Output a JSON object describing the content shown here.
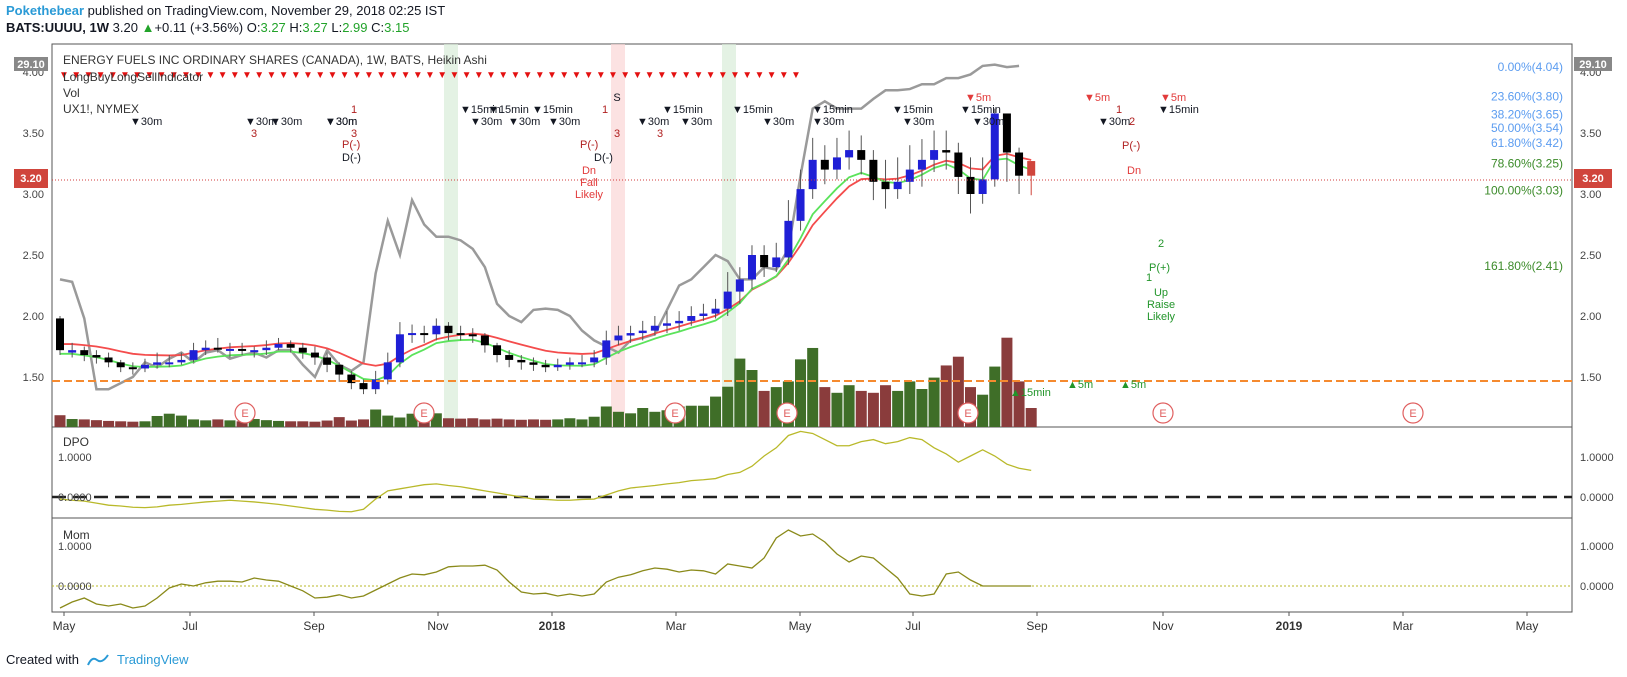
{
  "header": {
    "author": "Pokethebear",
    "published": " published on TradingView.com, November 29, 2018 02:25 IST",
    "symbol": "BATS:UUUU, 1W",
    "price": "3.20",
    "change": "+0.11 (+3.56%)",
    "o_label": "O:",
    "o": "3.27",
    "h_label": "H:",
    "h": "3.27",
    "l_label": "L:",
    "l": "2.99",
    "c_label": "C:",
    "c": "3.15"
  },
  "legend": {
    "title": "ENERGY FUELS INC ORDINARY SHARES (CANADA), 1W, BATS, Heikin Ashi",
    "ind1": "LongBuyLongSellIndicator",
    "ind2": "Vol",
    "ind3": "UX1!, NYMEX"
  },
  "fib_levels": [
    {
      "label": "0.00%(4.04)",
      "price": 4.04,
      "color": "#5b9cf0"
    },
    {
      "label": "23.60%(3.80)",
      "price": 3.8,
      "color": "#5b9cf0"
    },
    {
      "label": "38.20%(3.65)",
      "price": 3.65,
      "color": "#5b9cf0"
    },
    {
      "label": "50.00%(3.54)",
      "price": 3.54,
      "color": "#5b9cf0"
    },
    {
      "label": "61.80%(3.42)",
      "price": 3.42,
      "color": "#5b9cf0"
    },
    {
      "label": "78.60%(3.25)",
      "price": 3.25,
      "color": "#3c8b2a"
    },
    {
      "label": "100.00%(3.03)",
      "price": 3.03,
      "color": "#3c8b2a"
    },
    {
      "label": "161.80%(2.41)",
      "price": 2.41,
      "color": "#3c8b2a"
    }
  ],
  "price_axis": {
    "ticks": [
      "4.00",
      "3.50",
      "3.00",
      "2.50",
      "2.00",
      "1.50"
    ],
    "last_price_label": "3.20",
    "ux_label": "29.10"
  },
  "dpo": {
    "title": "DPO",
    "ticks": [
      "1.0000",
      "0.0000"
    ]
  },
  "mom": {
    "title": "Mom",
    "ticks": [
      "1.0000",
      "0.0000"
    ]
  },
  "time_axis": [
    "May",
    "Jul",
    "Sep",
    "Nov",
    "2018",
    "Mar",
    "May",
    "Jul",
    "Sep",
    "Nov",
    "2019",
    "Mar",
    "May"
  ],
  "signal_labels": [
    {
      "text": "▼30m"
    },
    {
      "text": "▼30m"
    },
    {
      "text": "▼30m"
    },
    {
      "text": "▼30m"
    },
    {
      "text": "▼30m"
    },
    {
      "text": "▼15min"
    },
    {
      "text": "▼15min"
    },
    {
      "text": "▼15min"
    },
    {
      "text": "▼15min"
    },
    {
      "text": "▼15min"
    },
    {
      "text": "▼15min"
    },
    {
      "text": "▼15min"
    },
    {
      "text": "▼15min"
    },
    {
      "text": "▼15min"
    },
    {
      "text": "▼30m"
    },
    {
      "text": "▼30m"
    },
    {
      "text": "▼30m"
    },
    {
      "text": "▼30m"
    },
    {
      "text": "▼30m"
    },
    {
      "text": "▼30m"
    },
    {
      "text": "▼30m"
    },
    {
      "text": "▼30m"
    },
    {
      "text": "▼30m"
    },
    {
      "text": "▼30m"
    },
    {
      "text": "▼5m"
    },
    {
      "text": "▼5m"
    },
    {
      "text": "▼5m"
    }
  ],
  "annotations": {
    "p_minus_1": "P(-)",
    "d_minus_1": "D(-)",
    "p_minus_2": "P(-)",
    "d_minus_2": "D(-)",
    "dn_fall": [
      "Dn",
      "Fall",
      "Likely"
    ],
    "s_label": "S",
    "p_minus_3": "P(-)",
    "dn_3": "Dn",
    "p_plus": "P(+)",
    "up_raise": [
      "Up",
      "Raise",
      "Likely"
    ],
    "num_1": "1",
    "num_2": "2",
    "num_3": "3",
    "e_marker": "E",
    "sig_15min": "▲15min",
    "sig_5m": "▲5m"
  },
  "footer": {
    "created": "Created with",
    "brand": "TradingView"
  },
  "colors": {
    "up_candle": "#1f1fd6",
    "down_candle": "#000000",
    "up_volume": "#3f6e28",
    "down_volume": "#8a3c3c",
    "ema_red": "#f44c4c",
    "ema_green": "#5be35b",
    "ux_line": "#9a9a9a",
    "support_line": "#f58a2f",
    "osc_line": "#b9b92a"
  },
  "chart_data": {
    "type": "candlestick",
    "title": "ENERGY FUELS INC ORDINARY SHARES (CANADA), 1W, BATS, Heikin Ashi",
    "ylim": [
      1.25,
      4.05
    ],
    "candles": [
      [
        1.98,
        1.72,
        2.0,
        1.68
      ],
      [
        1.7,
        1.72,
        1.78,
        1.66
      ],
      [
        1.72,
        1.68,
        1.75,
        1.63
      ],
      [
        1.68,
        1.66,
        1.72,
        1.61
      ],
      [
        1.66,
        1.62,
        1.7,
        1.58
      ],
      [
        1.62,
        1.58,
        1.64,
        1.54
      ],
      [
        1.58,
        1.57,
        1.62,
        1.52
      ],
      [
        1.57,
        1.6,
        1.65,
        1.54
      ],
      [
        1.6,
        1.62,
        1.7,
        1.57
      ],
      [
        1.62,
        1.62,
        1.68,
        1.58
      ],
      [
        1.62,
        1.64,
        1.7,
        1.6
      ],
      [
        1.64,
        1.72,
        1.78,
        1.62
      ],
      [
        1.72,
        1.74,
        1.8,
        1.68
      ],
      [
        1.74,
        1.73,
        1.82,
        1.7
      ],
      [
        1.73,
        1.73,
        1.78,
        1.66
      ],
      [
        1.73,
        1.72,
        1.78,
        1.68
      ],
      [
        1.72,
        1.72,
        1.75,
        1.66
      ],
      [
        1.72,
        1.74,
        1.8,
        1.68
      ],
      [
        1.74,
        1.77,
        1.82,
        1.72
      ],
      [
        1.77,
        1.74,
        1.8,
        1.7
      ],
      [
        1.74,
        1.7,
        1.78,
        1.65
      ],
      [
        1.7,
        1.66,
        1.75,
        1.6
      ],
      [
        1.66,
        1.6,
        1.7,
        1.54
      ],
      [
        1.6,
        1.52,
        1.62,
        1.46
      ],
      [
        1.52,
        1.45,
        1.55,
        1.4
      ],
      [
        1.45,
        1.4,
        1.48,
        1.36
      ],
      [
        1.4,
        1.48,
        1.55,
        1.36
      ],
      [
        1.48,
        1.62,
        1.7,
        1.44
      ],
      [
        1.62,
        1.85,
        1.95,
        1.58
      ],
      [
        1.85,
        1.86,
        1.93,
        1.78
      ],
      [
        1.86,
        1.85,
        1.92,
        1.78
      ],
      [
        1.85,
        1.92,
        1.98,
        1.8
      ],
      [
        1.92,
        1.86,
        1.95,
        1.8
      ],
      [
        1.86,
        1.85,
        1.92,
        1.8
      ],
      [
        1.85,
        1.84,
        1.9,
        1.78
      ],
      [
        1.84,
        1.76,
        1.86,
        1.7
      ],
      [
        1.76,
        1.68,
        1.78,
        1.62
      ],
      [
        1.68,
        1.64,
        1.72,
        1.58
      ],
      [
        1.64,
        1.62,
        1.68,
        1.56
      ],
      [
        1.62,
        1.6,
        1.66,
        1.55
      ],
      [
        1.6,
        1.58,
        1.64,
        1.54
      ],
      [
        1.58,
        1.6,
        1.65,
        1.55
      ],
      [
        1.6,
        1.62,
        1.66,
        1.56
      ],
      [
        1.62,
        1.62,
        1.68,
        1.58
      ],
      [
        1.62,
        1.66,
        1.72,
        1.58
      ],
      [
        1.66,
        1.8,
        1.88,
        1.6
      ],
      [
        1.8,
        1.84,
        1.92,
        1.76
      ],
      [
        1.84,
        1.86,
        1.92,
        1.78
      ],
      [
        1.86,
        1.88,
        1.96,
        1.8
      ],
      [
        1.88,
        1.92,
        2.0,
        1.84
      ],
      [
        1.92,
        1.94,
        2.04,
        1.86
      ],
      [
        1.94,
        1.96,
        2.04,
        1.88
      ],
      [
        1.96,
        2.0,
        2.08,
        1.92
      ],
      [
        2.0,
        2.02,
        2.1,
        1.96
      ],
      [
        2.02,
        2.06,
        2.14,
        1.98
      ],
      [
        2.06,
        2.2,
        2.36,
        2.0
      ],
      [
        2.2,
        2.3,
        2.4,
        2.1
      ],
      [
        2.3,
        2.5,
        2.58,
        2.22
      ],
      [
        2.5,
        2.4,
        2.58,
        2.32
      ],
      [
        2.4,
        2.48,
        2.6,
        2.36
      ],
      [
        2.48,
        2.78,
        2.95,
        2.42
      ],
      [
        2.78,
        3.04,
        3.2,
        2.7
      ],
      [
        3.04,
        3.28,
        3.46,
        2.96
      ],
      [
        3.28,
        3.2,
        3.4,
        3.08
      ],
      [
        3.2,
        3.3,
        3.46,
        3.12
      ],
      [
        3.3,
        3.36,
        3.52,
        3.2
      ],
      [
        3.36,
        3.28,
        3.48,
        3.16
      ],
      [
        3.28,
        3.1,
        3.36,
        2.95
      ],
      [
        3.1,
        3.04,
        3.28,
        2.88
      ],
      [
        3.04,
        3.1,
        3.3,
        2.96
      ],
      [
        3.1,
        3.2,
        3.4,
        3.0
      ],
      [
        3.2,
        3.28,
        3.45,
        3.06
      ],
      [
        3.28,
        3.36,
        3.52,
        3.18
      ],
      [
        3.36,
        3.34,
        3.52,
        3.2
      ],
      [
        3.34,
        3.14,
        3.42,
        3.0
      ],
      [
        3.14,
        3.0,
        3.3,
        2.84
      ],
      [
        3.0,
        3.12,
        3.3,
        2.92
      ],
      [
        3.12,
        3.66,
        3.7,
        3.06
      ],
      [
        3.66,
        3.34,
        3.66,
        3.1
      ],
      [
        3.34,
        3.15,
        3.38,
        3.0
      ],
      [
        3.27,
        3.15,
        3.27,
        2.99
      ]
    ],
    "volume_relative": [
      0.62,
      0.42,
      0.4,
      0.36,
      0.32,
      0.3,
      0.28,
      0.3,
      0.58,
      0.7,
      0.6,
      0.4,
      0.35,
      0.4,
      0.35,
      0.3,
      0.42,
      0.36,
      0.32,
      0.3,
      0.3,
      0.28,
      0.34,
      0.52,
      0.34,
      0.4,
      0.92,
      0.6,
      0.5,
      0.7,
      0.72,
      0.72,
      0.46,
      0.44,
      0.46,
      0.4,
      0.44,
      0.4,
      0.38,
      0.4,
      0.38,
      0.4,
      0.46,
      0.4,
      0.54,
      1.08,
      0.8,
      0.72,
      1.0,
      0.8,
      0.88,
      1.08,
      1.12,
      1.12,
      1.6,
      2.12,
      3.6,
      3.0,
      1.9,
      2.1,
      2.4,
      3.56,
      4.16,
      2.1,
      1.8,
      2.2,
      1.9,
      1.8,
      2.2,
      1.9,
      2.4,
      2.0,
      2.6,
      3.24,
      3.7,
      2.1,
      1.7,
      3.18,
      4.7,
      2.4,
      1.0
    ],
    "dpo": [
      -0.05,
      -0.08,
      -0.1,
      -0.15,
      -0.2,
      -0.22,
      -0.25,
      -0.26,
      -0.24,
      -0.2,
      -0.18,
      -0.15,
      -0.12,
      -0.1,
      -0.08,
      -0.1,
      -0.12,
      -0.15,
      -0.18,
      -0.22,
      -0.26,
      -0.3,
      -0.32,
      -0.35,
      -0.36,
      -0.3,
      -0.05,
      0.15,
      0.2,
      0.25,
      0.3,
      0.32,
      0.28,
      0.25,
      0.2,
      0.15,
      0.1,
      0.05,
      0.0,
      -0.05,
      -0.06,
      -0.08,
      -0.08,
      -0.06,
      -0.05,
      0.05,
      0.15,
      0.22,
      0.25,
      0.28,
      0.32,
      0.35,
      0.4,
      0.42,
      0.45,
      0.55,
      0.6,
      0.75,
      1.0,
      1.2,
      1.5,
      1.6,
      1.55,
      1.4,
      1.25,
      1.25,
      1.35,
      1.4,
      1.3,
      1.35,
      1.45,
      1.4,
      1.2,
      1.05,
      0.85,
      1.0,
      1.15,
      1.0,
      0.8,
      0.7,
      0.65
    ],
    "momentum": [
      -0.55,
      -0.4,
      -0.3,
      -0.45,
      -0.5,
      -0.45,
      -0.55,
      -0.5,
      -0.3,
      -0.05,
      0.05,
      0.0,
      0.08,
      0.12,
      0.12,
      0.1,
      0.2,
      0.15,
      0.12,
      0.0,
      -0.12,
      -0.3,
      -0.28,
      -0.22,
      -0.3,
      -0.25,
      -0.1,
      0.05,
      0.2,
      0.3,
      0.28,
      0.35,
      0.48,
      0.5,
      0.5,
      0.52,
      0.4,
      0.1,
      -0.15,
      -0.2,
      -0.18,
      -0.25,
      -0.2,
      -0.25,
      -0.2,
      0.1,
      0.22,
      0.28,
      0.38,
      0.45,
      0.42,
      0.35,
      0.4,
      0.38,
      0.3,
      0.55,
      0.5,
      0.45,
      0.7,
      1.2,
      1.4,
      1.25,
      1.3,
      1.1,
      0.8,
      0.6,
      0.75,
      0.7,
      0.45,
      0.2,
      -0.2,
      -0.25,
      -0.2,
      0.3,
      0.35,
      0.15,
      0.0,
      0.0,
      0.0,
      0.0,
      0.0
    ]
  }
}
